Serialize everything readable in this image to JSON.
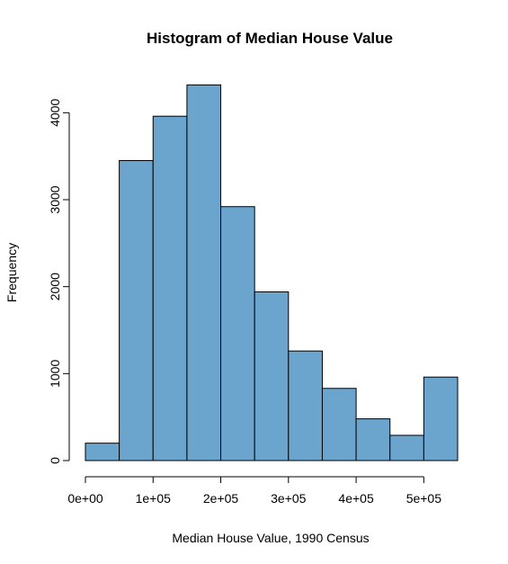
{
  "chart_data": {
    "type": "bar",
    "title": "Histogram of Median House Value",
    "xlabel": "Median House Value, 1990 Census",
    "ylabel": "Frequency",
    "bin_edges": [
      0,
      50000,
      100000,
      150000,
      200000,
      250000,
      300000,
      350000,
      400000,
      450000,
      500000,
      550000
    ],
    "values": [
      200,
      3450,
      3960,
      4320,
      2920,
      1940,
      1260,
      830,
      480,
      290,
      960
    ],
    "xlim": [
      0,
      550000
    ],
    "ylim": [
      0,
      4320
    ],
    "x_ticks": [
      {
        "value": 0,
        "label": "0e+00"
      },
      {
        "value": 100000,
        "label": "1e+05"
      },
      {
        "value": 200000,
        "label": "2e+05"
      },
      {
        "value": 300000,
        "label": "3e+05"
      },
      {
        "value": 400000,
        "label": "4e+05"
      },
      {
        "value": 500000,
        "label": "5e+05"
      }
    ],
    "y_ticks": [
      {
        "value": 0,
        "label": "0"
      },
      {
        "value": 1000,
        "label": "1000"
      },
      {
        "value": 2000,
        "label": "2000"
      },
      {
        "value": 3000,
        "label": "3000"
      },
      {
        "value": 4000,
        "label": "4000"
      }
    ],
    "bar_color": "#6ba5cd",
    "edge_color": "#000000",
    "grid": false
  }
}
